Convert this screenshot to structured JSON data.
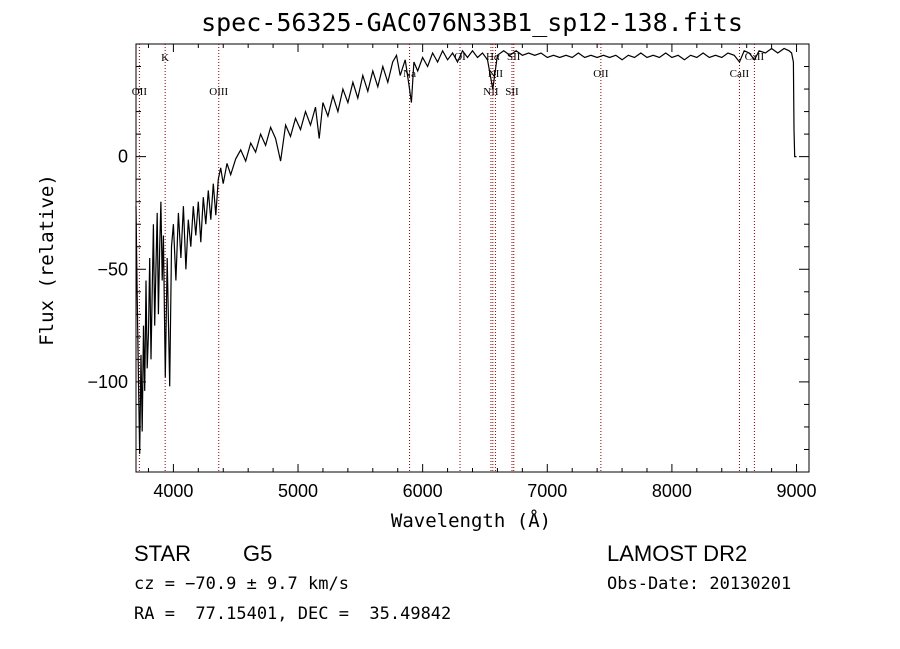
{
  "chart_data": {
    "type": "line",
    "title": "spec-56325-GAC076N33B1_sp12-138.fits",
    "xlabel": "Wavelength (Å)",
    "ylabel": "Flux (relative)",
    "xlim": [
      3700,
      9100
    ],
    "ylim": [
      -140,
      50
    ],
    "x_ticks": [
      4000,
      5000,
      6000,
      7000,
      8000,
      9000
    ],
    "y_ticks": [
      0,
      -50,
      -100
    ],
    "grid": false,
    "series": [
      {
        "points": [
          [
            3700,
            -22
          ],
          [
            3710,
            -62
          ],
          [
            3720,
            -100
          ],
          [
            3730,
            -132
          ],
          [
            3740,
            -88
          ],
          [
            3750,
            -122
          ],
          [
            3760,
            -75
          ],
          [
            3770,
            -104
          ],
          [
            3780,
            -55
          ],
          [
            3790,
            -94
          ],
          [
            3800,
            -78
          ],
          [
            3810,
            -45
          ],
          [
            3820,
            -90
          ],
          [
            3830,
            -60
          ],
          [
            3840,
            -30
          ],
          [
            3850,
            -75
          ],
          [
            3860,
            -50
          ],
          [
            3870,
            -25
          ],
          [
            3880,
            -70
          ],
          [
            3890,
            -40
          ],
          [
            3900,
            -20
          ],
          [
            3910,
            -55
          ],
          [
            3920,
            -35
          ],
          [
            3935,
            -98
          ],
          [
            3950,
            -45
          ],
          [
            3970,
            -102
          ],
          [
            3985,
            -40
          ],
          [
            4000,
            -30
          ],
          [
            4020,
            -55
          ],
          [
            4040,
            -25
          ],
          [
            4060,
            -45
          ],
          [
            4080,
            -22
          ],
          [
            4100,
            -50
          ],
          [
            4120,
            -28
          ],
          [
            4140,
            -40
          ],
          [
            4160,
            -22
          ],
          [
            4180,
            -35
          ],
          [
            4200,
            -20
          ],
          [
            4220,
            -38
          ],
          [
            4240,
            -18
          ],
          [
            4260,
            -30
          ],
          [
            4280,
            -15
          ],
          [
            4300,
            -28
          ],
          [
            4320,
            -12
          ],
          [
            4340,
            -26
          ],
          [
            4360,
            -10
          ],
          [
            4380,
            -5
          ],
          [
            4400,
            -12
          ],
          [
            4430,
            -3
          ],
          [
            4460,
            -8
          ],
          [
            4500,
            -1
          ],
          [
            4540,
            3
          ],
          [
            4580,
            -2
          ],
          [
            4620,
            6
          ],
          [
            4660,
            2
          ],
          [
            4700,
            10
          ],
          [
            4740,
            5
          ],
          [
            4780,
            13
          ],
          [
            4820,
            8
          ],
          [
            4860,
            -2
          ],
          [
            4900,
            14
          ],
          [
            4940,
            9
          ],
          [
            4980,
            17
          ],
          [
            5020,
            12
          ],
          [
            5060,
            20
          ],
          [
            5100,
            14
          ],
          [
            5140,
            22
          ],
          [
            5170,
            8
          ],
          [
            5200,
            24
          ],
          [
            5240,
            18
          ],
          [
            5280,
            27
          ],
          [
            5320,
            20
          ],
          [
            5360,
            30
          ],
          [
            5400,
            24
          ],
          [
            5440,
            33
          ],
          [
            5480,
            26
          ],
          [
            5520,
            36
          ],
          [
            5560,
            29
          ],
          [
            5600,
            38
          ],
          [
            5640,
            31
          ],
          [
            5680,
            40
          ],
          [
            5720,
            33
          ],
          [
            5760,
            42
          ],
          [
            5790,
            45
          ],
          [
            5820,
            36
          ],
          [
            5860,
            43
          ],
          [
            5890,
            32
          ],
          [
            5910,
            24
          ],
          [
            5930,
            42
          ],
          [
            5960,
            38
          ],
          [
            6000,
            44
          ],
          [
            6040,
            40
          ],
          [
            6080,
            46
          ],
          [
            6120,
            42
          ],
          [
            6160,
            47
          ],
          [
            6200,
            43
          ],
          [
            6240,
            46
          ],
          [
            6280,
            42
          ],
          [
            6320,
            47
          ],
          [
            6360,
            44
          ],
          [
            6400,
            47
          ],
          [
            6440,
            44
          ],
          [
            6480,
            46
          ],
          [
            6520,
            43
          ],
          [
            6563,
            30
          ],
          [
            6600,
            45
          ],
          [
            6650,
            47
          ],
          [
            6700,
            45
          ],
          [
            6750,
            47
          ],
          [
            6800,
            45
          ],
          [
            6850,
            46
          ],
          [
            6900,
            45
          ],
          [
            6950,
            46
          ],
          [
            7000,
            44
          ],
          [
            7050,
            45
          ],
          [
            7100,
            44
          ],
          [
            7150,
            45
          ],
          [
            7200,
            44
          ],
          [
            7250,
            46
          ],
          [
            7300,
            44
          ],
          [
            7350,
            45
          ],
          [
            7400,
            44
          ],
          [
            7450,
            45
          ],
          [
            7500,
            44
          ],
          [
            7550,
            45
          ],
          [
            7600,
            43
          ],
          [
            7650,
            45
          ],
          [
            7700,
            44
          ],
          [
            7750,
            46
          ],
          [
            7800,
            44
          ],
          [
            7850,
            45
          ],
          [
            7900,
            44
          ],
          [
            7950,
            46
          ],
          [
            8000,
            44
          ],
          [
            8050,
            45
          ],
          [
            8100,
            43
          ],
          [
            8150,
            45
          ],
          [
            8200,
            44
          ],
          [
            8250,
            46
          ],
          [
            8300,
            44
          ],
          [
            8350,
            45
          ],
          [
            8400,
            44
          ],
          [
            8450,
            46
          ],
          [
            8500,
            45
          ],
          [
            8542,
            42
          ],
          [
            8580,
            47
          ],
          [
            8620,
            46
          ],
          [
            8662,
            43
          ],
          [
            8700,
            47
          ],
          [
            8750,
            46
          ],
          [
            8800,
            48
          ],
          [
            8850,
            46
          ],
          [
            8900,
            48
          ],
          [
            8940,
            47
          ],
          [
            8960,
            46
          ],
          [
            8975,
            42
          ],
          [
            8980,
            12
          ],
          [
            8985,
            0
          ],
          [
            9000,
            0
          ]
        ]
      }
    ],
    "lines": [
      {
        "x": 3727,
        "label": "OII"
      },
      {
        "x": 3934,
        "label": "K"
      },
      {
        "x": 4364,
        "label": "OIII"
      },
      {
        "x": 5895,
        "label": "Na"
      },
      {
        "x": 6300,
        "label": "OI"
      },
      {
        "x": 6548,
        "label": "NII"
      },
      {
        "x": 6584,
        "label": "NII"
      },
      {
        "x": 6563,
        "label": "Hα"
      },
      {
        "x": 6717,
        "label": "SII"
      },
      {
        "x": 6731,
        "label": "SII"
      },
      {
        "x": 7430,
        "label": "OII"
      },
      {
        "x": 8542,
        "label": "CaII"
      },
      {
        "x": 8662,
        "label": "CaII"
      }
    ]
  },
  "footer": {
    "object_class": "STAR",
    "subclass": "G5",
    "survey": "LAMOST DR2",
    "cz": "cz = −70.9 ± 9.7 km/s",
    "obs_date": "Obs-Date: 20130201",
    "coords": "RA =  77.15401, DEC =  35.49842"
  },
  "colors": {
    "line": "#000000",
    "marker_line": "#8b0000"
  }
}
